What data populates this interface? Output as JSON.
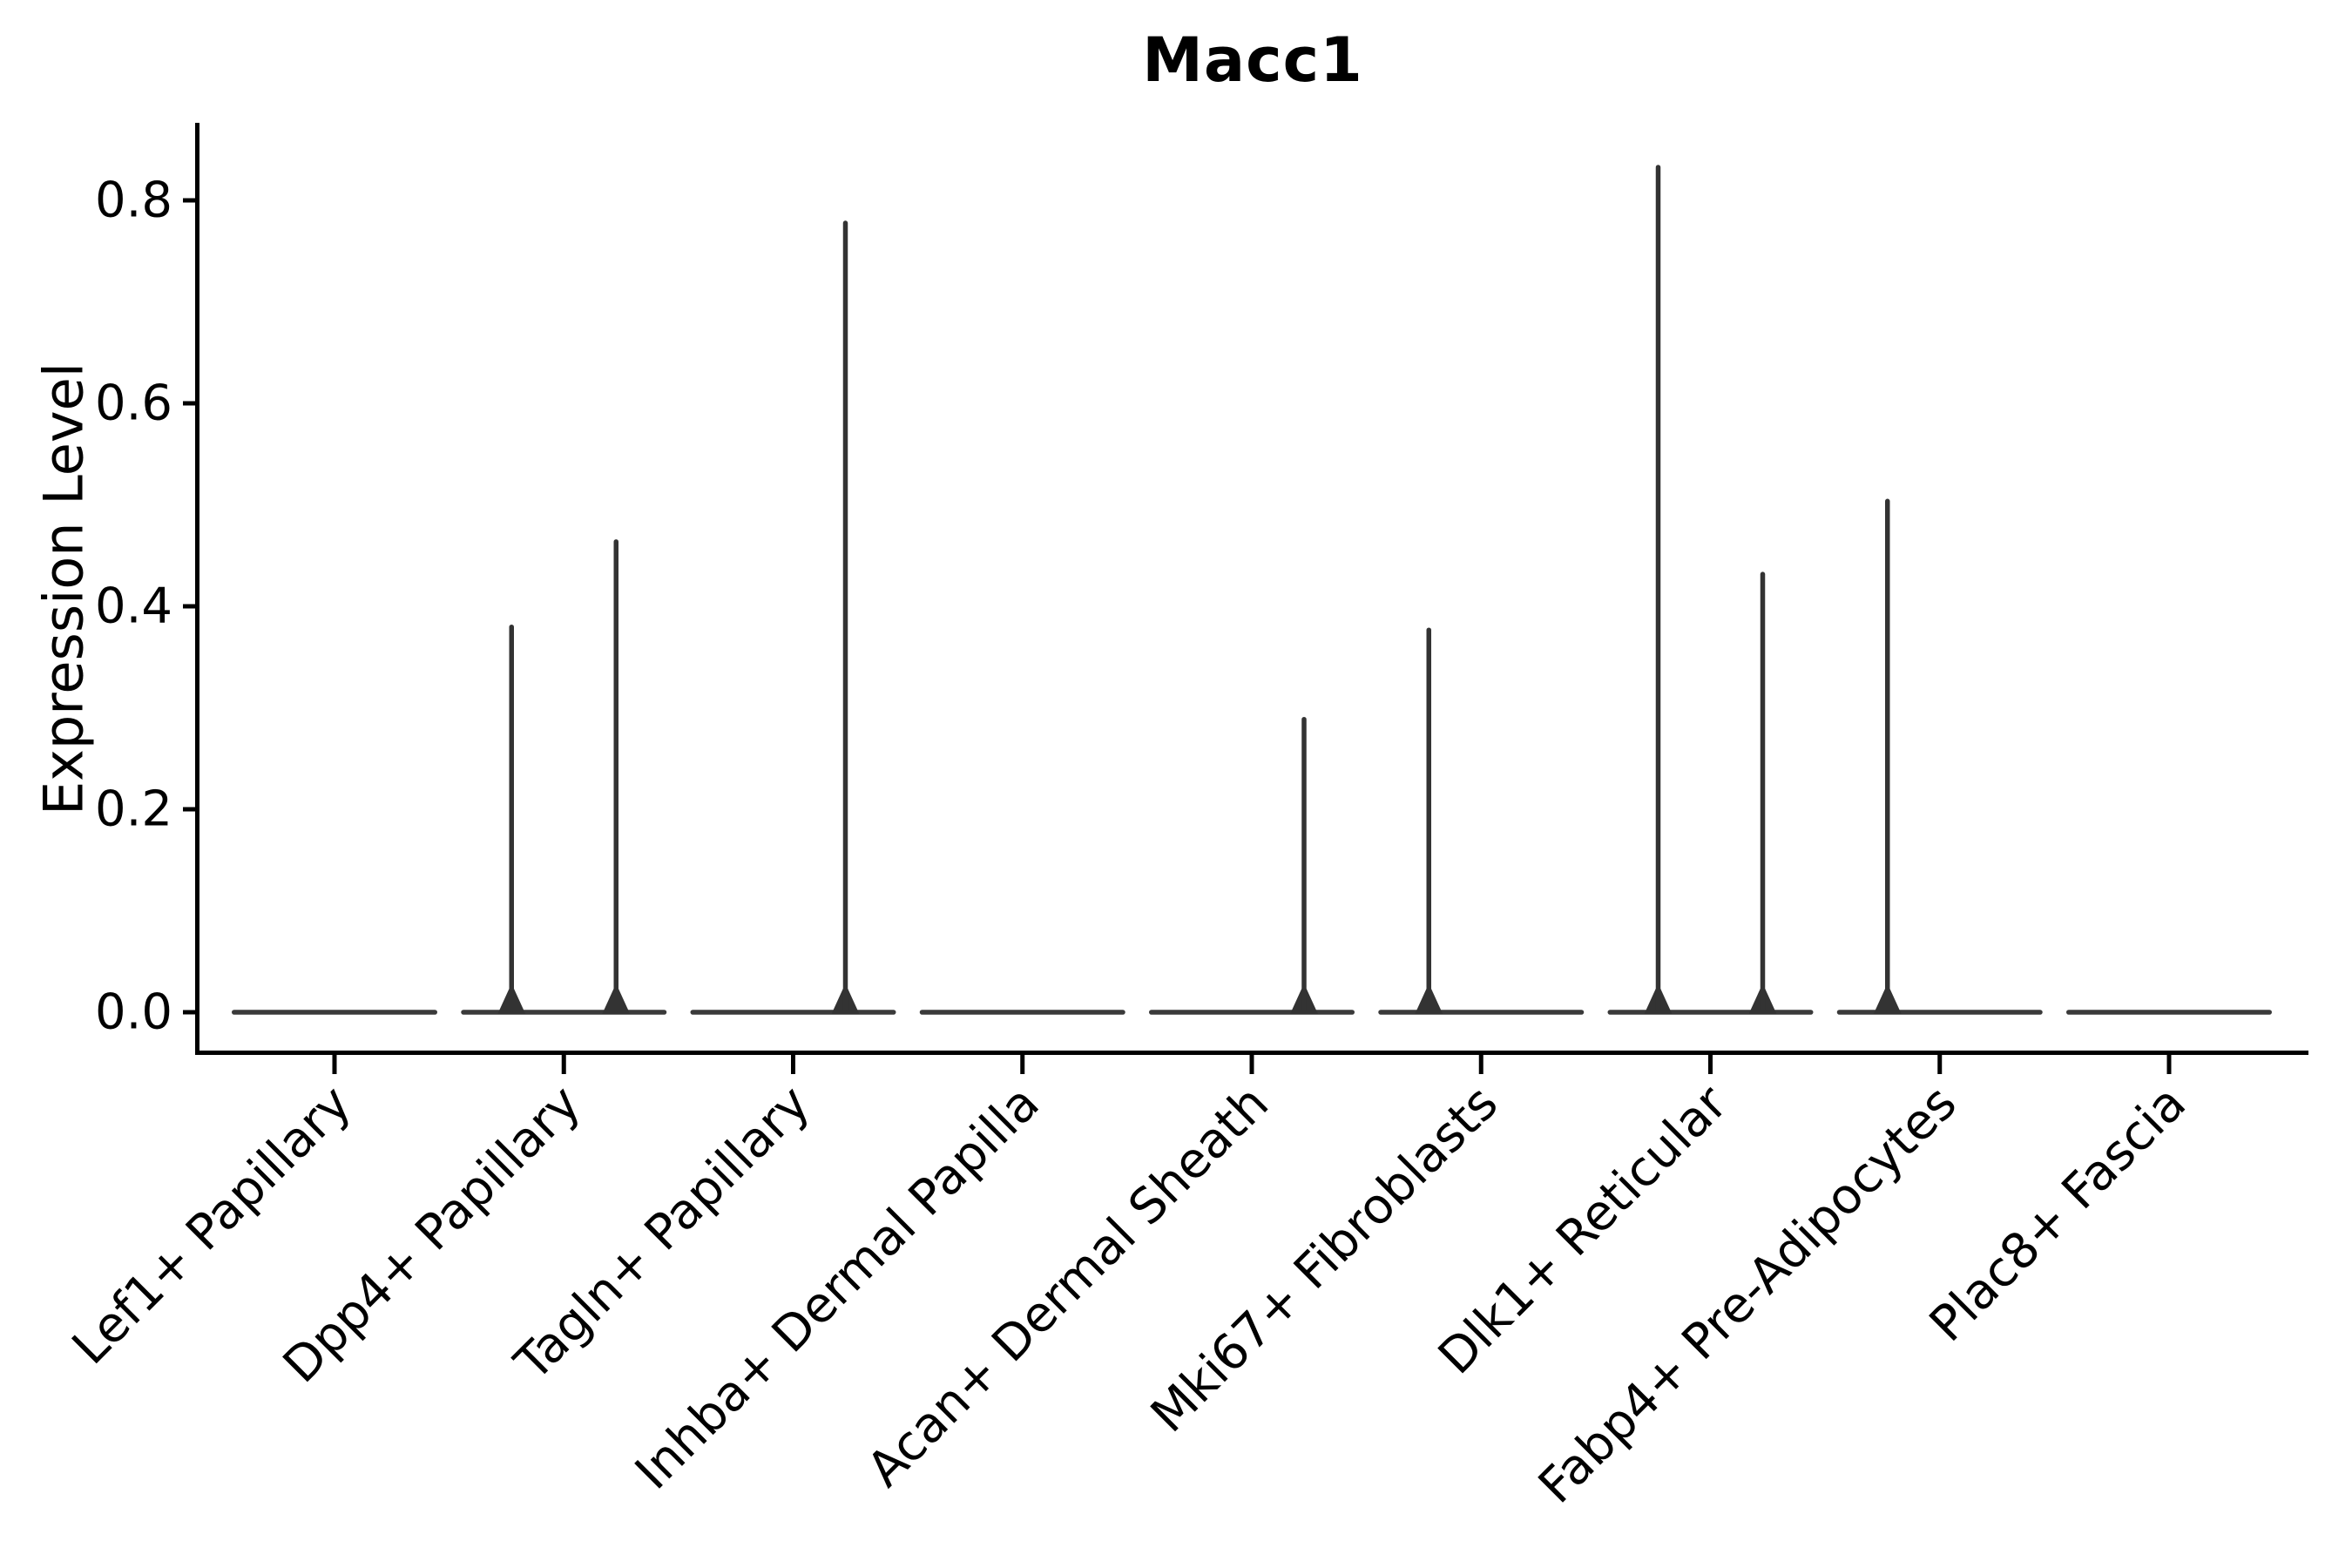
{
  "chart_data": {
    "type": "violin",
    "title": "Macc1",
    "xlabel": "",
    "ylabel": "Expression Level",
    "ylim": [
      0,
      0.87
    ],
    "yticks": [
      "0.0",
      "0.2",
      "0.4",
      "0.6",
      "0.8"
    ],
    "ytick_values": [
      0.0,
      0.2,
      0.4,
      0.6,
      0.8
    ],
    "grid": false,
    "legend_position": "none",
    "categories": [
      "Lef1+ Papillary",
      "Dpp4+ Papillary",
      "Tagln+ Papillary",
      "Inhba+ Dermal Papilla",
      "Acan+ Dermal Sheath",
      "Mki67+ Fibroblasts",
      "Dlk1+ Reticular",
      "Fabp4+ Pre-Adipocytes",
      "Plac8+ Fascia"
    ],
    "violins": [
      {
        "category": "Lef1+ Papillary",
        "baseline": 0.0,
        "spikes": []
      },
      {
        "category": "Dpp4+ Papillary",
        "baseline": 0.0,
        "spikes": [
          {
            "side": "left",
            "max": 0.382
          },
          {
            "side": "right",
            "max": 0.466
          }
        ]
      },
      {
        "category": "Tagln+ Papillary",
        "baseline": 0.0,
        "spikes": [
          {
            "side": "right",
            "max": 0.78
          }
        ]
      },
      {
        "category": "Inhba+ Dermal Papilla",
        "baseline": 0.0,
        "spikes": []
      },
      {
        "category": "Acan+ Dermal Sheath",
        "baseline": 0.0,
        "spikes": [
          {
            "side": "right",
            "max": 0.291
          }
        ]
      },
      {
        "category": "Mki67+ Fibroblasts",
        "baseline": 0.0,
        "spikes": [
          {
            "side": "left",
            "max": 0.379
          }
        ]
      },
      {
        "category": "Dlk1+ Reticular",
        "baseline": 0.0,
        "spikes": [
          {
            "side": "left",
            "max": 0.835
          },
          {
            "side": "right",
            "max": 0.434
          }
        ]
      },
      {
        "category": "Fabp4+ Pre-Adipocytes",
        "baseline": 0.0,
        "spikes": [
          {
            "side": "left",
            "max": 0.506
          }
        ]
      },
      {
        "category": "Plac8+ Fascia",
        "baseline": 0.0,
        "spikes": []
      }
    ],
    "colors": {
      "violin": "#3a3a3a",
      "spike": "#333333",
      "axis": "#000000",
      "text": "#000000",
      "background": "#ffffff"
    }
  }
}
